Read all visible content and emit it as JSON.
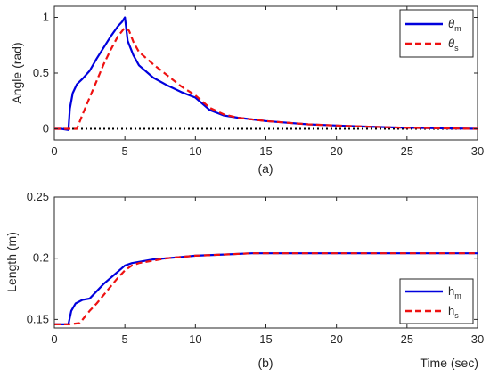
{
  "chart_data": [
    {
      "type": "line",
      "caption": "(a)",
      "ylabel": "Angle (rad)",
      "xlabel": "",
      "xlim": [
        0,
        30
      ],
      "ylim": [
        -0.1,
        1.1
      ],
      "xticks": [
        0,
        5,
        10,
        15,
        20,
        25,
        30
      ],
      "yticks": [
        0,
        0.5,
        1
      ],
      "ytick_labels": [
        "0",
        "0.5",
        "1"
      ],
      "legend_position": "top-right",
      "reference_line": {
        "y": 0,
        "style": "dotted",
        "color": "#000000"
      },
      "series": [
        {
          "name": "θ",
          "subscript": "m",
          "color": "#0000dd",
          "style": "solid",
          "x": [
            0,
            0.5,
            1.0,
            1.1,
            1.3,
            1.6,
            2.0,
            2.5,
            3.0,
            3.5,
            4.0,
            4.5,
            4.8,
            5.0,
            5.2,
            5.6,
            6,
            7,
            8,
            9,
            10,
            11,
            12,
            13,
            15,
            18,
            20,
            22,
            25,
            30
          ],
          "y": [
            0.0,
            0.0,
            -0.01,
            0.18,
            0.32,
            0.4,
            0.45,
            0.52,
            0.63,
            0.73,
            0.83,
            0.92,
            0.96,
            1.0,
            0.79,
            0.66,
            0.57,
            0.46,
            0.39,
            0.33,
            0.28,
            0.17,
            0.12,
            0.1,
            0.07,
            0.04,
            0.03,
            0.02,
            0.01,
            0.0
          ]
        },
        {
          "name": "θ",
          "subscript": "s",
          "color": "#ee1111",
          "style": "dashed",
          "x": [
            0,
            1.0,
            1.6,
            2.0,
            2.5,
            3.0,
            3.5,
            4.0,
            4.5,
            5.0,
            5.3,
            5.6,
            6,
            7,
            8,
            9,
            10,
            11,
            12,
            13,
            15,
            18,
            20,
            22,
            25,
            30
          ],
          "y": [
            0.0,
            0.0,
            0.0,
            0.13,
            0.28,
            0.43,
            0.58,
            0.71,
            0.83,
            0.91,
            0.88,
            0.78,
            0.69,
            0.58,
            0.48,
            0.38,
            0.3,
            0.19,
            0.13,
            0.1,
            0.07,
            0.04,
            0.03,
            0.02,
            0.01,
            0.0
          ]
        }
      ]
    },
    {
      "type": "line",
      "caption": "(b)",
      "ylabel": "Length (m)",
      "xlabel": "Time (sec)",
      "xlim": [
        0,
        30
      ],
      "ylim": [
        0.143,
        0.25
      ],
      "xticks": [
        0,
        5,
        10,
        15,
        20,
        25,
        30
      ],
      "yticks": [
        0.15,
        0.2,
        0.25
      ],
      "ytick_labels": [
        "0.15",
        "0.2",
        "0.25"
      ],
      "legend_position": "bottom-right",
      "series": [
        {
          "name": "h",
          "subscript": "m",
          "color": "#0000dd",
          "style": "solid",
          "x": [
            0,
            1.0,
            1.2,
            1.5,
            2.0,
            2.5,
            3,
            3.5,
            4,
            4.5,
            5,
            5.5,
            6,
            7,
            8,
            9,
            10,
            12,
            14,
            16,
            18,
            20,
            22,
            24,
            26,
            28,
            30
          ],
          "y": [
            0.146,
            0.146,
            0.157,
            0.163,
            0.166,
            0.167,
            0.173,
            0.179,
            0.184,
            0.189,
            0.194,
            0.196,
            0.197,
            0.199,
            0.2,
            0.201,
            0.202,
            0.203,
            0.204,
            0.204,
            0.204,
            0.204,
            0.204,
            0.204,
            0.204,
            0.204,
            0.204
          ]
        },
        {
          "name": "h",
          "subscript": "s",
          "color": "#ee1111",
          "style": "dashed",
          "x": [
            0,
            1.0,
            1.8,
            2.5,
            3,
            3.5,
            4,
            4.5,
            5,
            5.5,
            6,
            7,
            8,
            9,
            10,
            12,
            14,
            16,
            18,
            20,
            22,
            24,
            26,
            28,
            30
          ],
          "y": [
            0.146,
            0.146,
            0.147,
            0.157,
            0.163,
            0.17,
            0.177,
            0.184,
            0.19,
            0.194,
            0.196,
            0.198,
            0.2,
            0.201,
            0.202,
            0.203,
            0.204,
            0.204,
            0.204,
            0.204,
            0.204,
            0.204,
            0.204,
            0.204,
            0.204
          ]
        }
      ]
    }
  ]
}
